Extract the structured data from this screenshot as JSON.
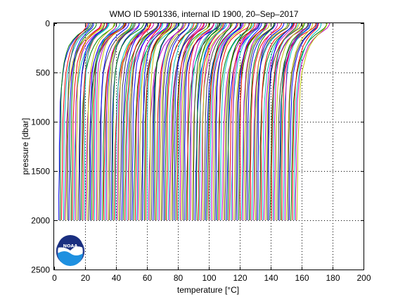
{
  "chart_data": {
    "type": "line",
    "title": "WMO ID 5901336, internal ID 1900, 20–Sep–2017",
    "xlabel": "temperature [°C]",
    "ylabel": "pressure [dbar]",
    "xlim": [
      0,
      200
    ],
    "ylim": [
      2500,
      0
    ],
    "y_reversed": true,
    "xticks": [
      0,
      20,
      40,
      60,
      80,
      100,
      120,
      140,
      160,
      180,
      200
    ],
    "yticks": [
      0,
      500,
      1000,
      1500,
      2000,
      2500
    ],
    "grid": true,
    "series_colors": [
      "#0000ff",
      "#008000",
      "#ff0000",
      "#00bfbf",
      "#bf00bf",
      "#bfbf00",
      "#404040"
    ],
    "profiles": {
      "count": 160,
      "offset_start": 3.0,
      "offset_end": 157.0,
      "surface_warming_range": [
        15,
        24
      ],
      "max_pressure": 2000
    },
    "shape": {
      "pressure": [
        0,
        20,
        50,
        80,
        120,
        170,
        230,
        300,
        400,
        500,
        650,
        800,
        1000,
        1250,
        1500,
        1750,
        2000
      ],
      "temperature_rel": [
        1.0,
        0.99,
        0.93,
        0.8,
        0.63,
        0.47,
        0.35,
        0.26,
        0.17,
        0.115,
        0.07,
        0.045,
        0.028,
        0.017,
        0.01,
        0.005,
        0.0
      ]
    }
  },
  "logo": {
    "name": "NOAA",
    "text": "NOAA"
  }
}
